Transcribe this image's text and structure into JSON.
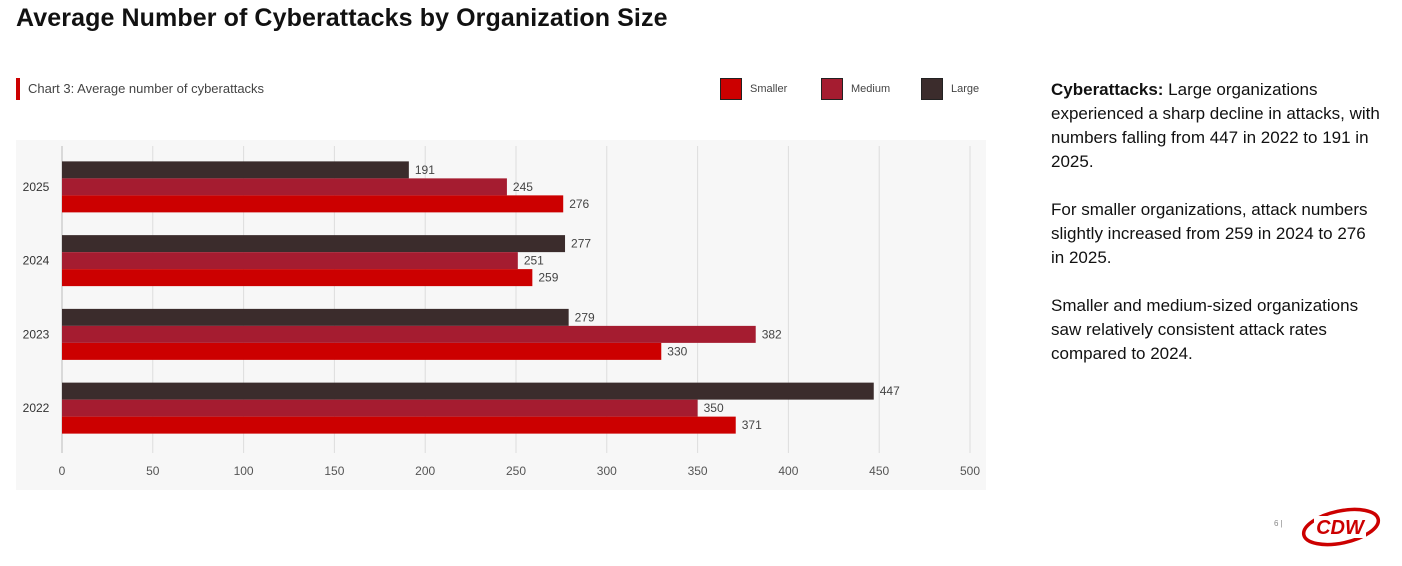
{
  "page": {
    "title": "Average Number of Cyberattacks by Organization Size",
    "page_number": "6 |"
  },
  "chart_caption": "Chart 3: Average number of cyberattacks",
  "legend": [
    {
      "label": "Smaller",
      "color": "#cc0000"
    },
    {
      "label": "Medium",
      "color": "#a51c30"
    },
    {
      "label": "Large",
      "color": "#3b2c2c"
    }
  ],
  "side_text": {
    "p1_lead": "Cyberattacks:",
    "p1_rest": " Large organizations experienced a sharp decline in attacks, with numbers falling from 447 in 2022 to 191 in 2025.",
    "p2": "For smaller organizations, attack numbers slightly increased from 259 in 2024 to 276 in 2025.",
    "p3": "Smaller and medium-sized organizations saw relatively consistent attack rates compared to 2024."
  },
  "logo": {
    "text": "CDW",
    "color": "#cc0000"
  },
  "chart_data": {
    "type": "bar",
    "orientation": "horizontal",
    "title": "Chart 3: Average number of cyberattacks",
    "categories": [
      "2025",
      "2024",
      "2023",
      "2022"
    ],
    "series": [
      {
        "name": "Large",
        "color": "#3b2c2c",
        "values": [
          191,
          277,
          279,
          447
        ]
      },
      {
        "name": "Medium",
        "color": "#a51c30",
        "values": [
          245,
          251,
          382,
          350
        ]
      },
      {
        "name": "Smaller",
        "color": "#cc0000",
        "values": [
          276,
          259,
          330,
          371
        ]
      }
    ],
    "xlim": [
      0,
      500
    ],
    "xticks": [
      0,
      50,
      100,
      150,
      200,
      250,
      300,
      350,
      400,
      450,
      500
    ],
    "grid": true,
    "legend_position": "top-right",
    "data_labels": true
  }
}
